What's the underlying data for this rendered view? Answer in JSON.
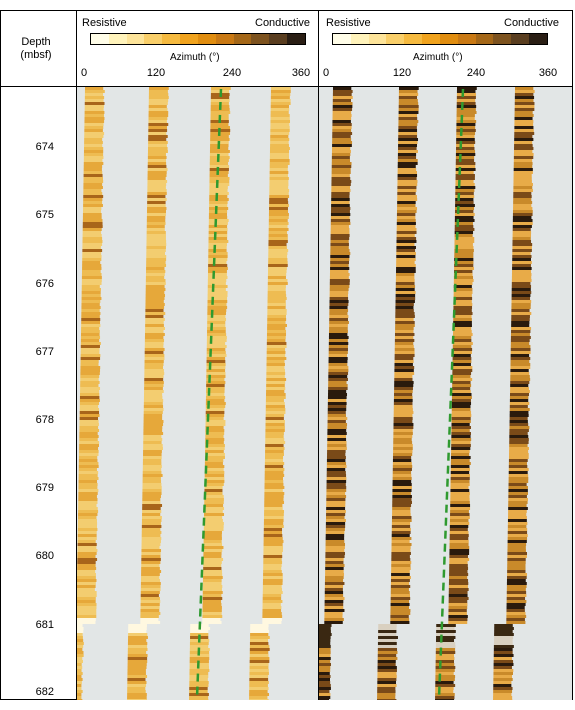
{
  "depth_axis": {
    "title_line1": "Depth",
    "title_line2": "(mbsf)",
    "ticks": [
      "674",
      "675",
      "676",
      "677",
      "678",
      "679",
      "680",
      "681",
      "682"
    ]
  },
  "panels": [
    {
      "resistive_label": "Resistive",
      "conductive_label": "Conductive",
      "azimuth_label": "Azimuth (°)",
      "azimuth_ticks": [
        "0",
        "120",
        "240",
        "360"
      ],
      "colorbar": [
        "#fffde8",
        "#fff3bb",
        "#fde49a",
        "#f9cf6a",
        "#f5ba40",
        "#f0a31e",
        "#e08d10",
        "#c97914",
        "#a46718",
        "#7d531f",
        "#5a3e20",
        "#2a1e14"
      ]
    },
    {
      "resistive_label": "Resistive",
      "conductive_label": "Conductive",
      "azimuth_label": "Azimuth (°)",
      "azimuth_ticks": [
        "0",
        "120",
        "240",
        "360"
      ],
      "colorbar": [
        "#fffde8",
        "#fff3bb",
        "#fde49a",
        "#f9cf6a",
        "#f5ba40",
        "#f0a31e",
        "#e08d10",
        "#c97914",
        "#a46718",
        "#7d531f",
        "#5a3e20",
        "#2a1e14"
      ]
    }
  ],
  "colors": {
    "background_gap": "#e2e6e6",
    "sinusoid_trace": "#2f9a2f"
  }
}
